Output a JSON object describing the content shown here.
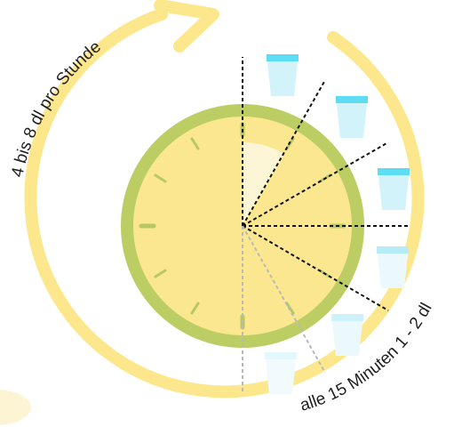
{
  "labels": {
    "hourly_amount": "4 bis 8 dl pro Stunde",
    "interval_amount": "alle 15 Minuten 1 - 2 dl"
  },
  "colors": {
    "outer_ring": "#fde78d",
    "clock_rim": "#bccd64",
    "clock_face": "#fbe78f",
    "clock_tick": "#b8c764",
    "elapsed_wedge": "#fdf6d6",
    "cup_full": "#d3f3fb",
    "cup_full_rim": "#5edcf4",
    "cup_faded": "#ebf9fd",
    "cup_faded_rim": "#b5ecf8",
    "dash_dark": "#111111",
    "dash_light": "#b9b9b9",
    "blob": "#fdf4d3"
  },
  "icons": {
    "cup": "water-glass-icon",
    "arrow": "arrowhead-icon"
  },
  "cups": [
    {
      "state": "full"
    },
    {
      "state": "full"
    },
    {
      "state": "full"
    },
    {
      "state": "faded"
    },
    {
      "state": "faded"
    },
    {
      "state": "faded"
    }
  ]
}
